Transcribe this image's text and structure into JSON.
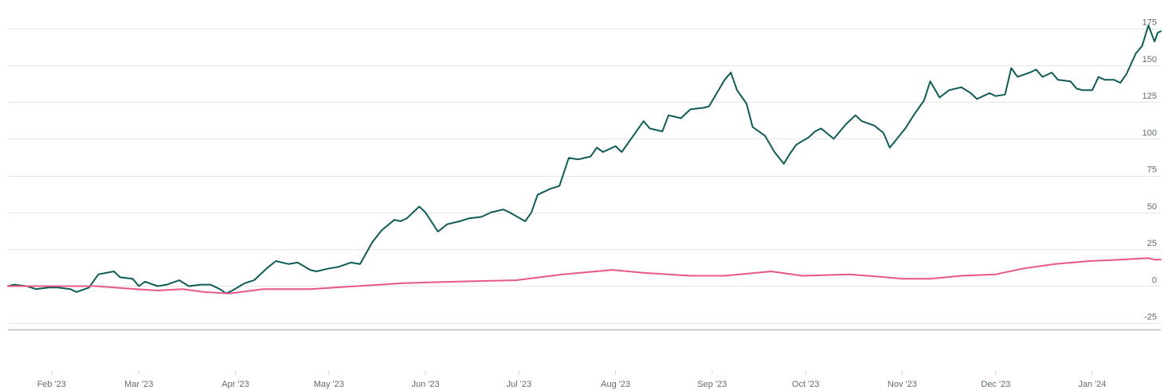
{
  "chart_data": {
    "type": "line",
    "title": "",
    "xlabel": "",
    "ylabel": "",
    "x_ticks": [
      "Feb '23",
      "Mar '23",
      "Apr '23",
      "May '23",
      "Jun '23",
      "Jul '23",
      "Aug '23",
      "Sep '23",
      "Oct '23",
      "Nov '23",
      "Dec '23",
      "Jan '24"
    ],
    "y_ticks": [
      "175",
      "150",
      "125",
      "100",
      "75",
      "50",
      "25",
      "0",
      "-25"
    ],
    "ylim": [
      -30,
      178
    ],
    "xlim": [
      "2023-01-18",
      "2024-01-23"
    ],
    "y_axis_position": "right",
    "grid": true,
    "legend": "none",
    "series": [
      {
        "color": "#0f5c57",
        "points": [
          [
            "2023-01-18",
            0
          ],
          [
            "2023-01-20",
            1
          ],
          [
            "2023-01-24",
            0
          ],
          [
            "2023-01-27",
            -2
          ],
          [
            "2023-01-31",
            -1
          ],
          [
            "2023-02-03",
            -1
          ],
          [
            "2023-02-07",
            -2
          ],
          [
            "2023-02-09",
            -4
          ],
          [
            "2023-02-13",
            -1
          ],
          [
            "2023-02-16",
            8
          ],
          [
            "2023-02-21",
            10
          ],
          [
            "2023-02-23",
            6
          ],
          [
            "2023-02-27",
            5
          ],
          [
            "2023-03-01",
            0
          ],
          [
            "2023-03-03",
            3
          ],
          [
            "2023-03-07",
            0
          ],
          [
            "2023-03-10",
            1
          ],
          [
            "2023-03-14",
            4
          ],
          [
            "2023-03-17",
            0
          ],
          [
            "2023-03-21",
            1
          ],
          [
            "2023-03-24",
            1
          ],
          [
            "2023-03-27",
            -2
          ],
          [
            "2023-03-29",
            -5
          ],
          [
            "2023-03-31",
            -3
          ],
          [
            "2023-04-04",
            2
          ],
          [
            "2023-04-07",
            4
          ],
          [
            "2023-04-11",
            12
          ],
          [
            "2023-04-14",
            17
          ],
          [
            "2023-04-18",
            15
          ],
          [
            "2023-04-21",
            16
          ],
          [
            "2023-04-25",
            11
          ],
          [
            "2023-04-27",
            10
          ],
          [
            "2023-05-01",
            12
          ],
          [
            "2023-05-04",
            13
          ],
          [
            "2023-05-08",
            16
          ],
          [
            "2023-05-11",
            15
          ],
          [
            "2023-05-15",
            30
          ],
          [
            "2023-05-18",
            38
          ],
          [
            "2023-05-22",
            45
          ],
          [
            "2023-05-24",
            44
          ],
          [
            "2023-05-26",
            46
          ],
          [
            "2023-05-30",
            54
          ],
          [
            "2023-06-01",
            50
          ],
          [
            "2023-06-05",
            37
          ],
          [
            "2023-06-08",
            42
          ],
          [
            "2023-06-12",
            44
          ],
          [
            "2023-06-15",
            46
          ],
          [
            "2023-06-19",
            47
          ],
          [
            "2023-06-22",
            50
          ],
          [
            "2023-06-26",
            52
          ],
          [
            "2023-06-28",
            50
          ],
          [
            "2023-07-03",
            44
          ],
          [
            "2023-07-05",
            50
          ],
          [
            "2023-07-07",
            62
          ],
          [
            "2023-07-11",
            66
          ],
          [
            "2023-07-14",
            68
          ],
          [
            "2023-07-17",
            87
          ],
          [
            "2023-07-20",
            86
          ],
          [
            "2023-07-24",
            88
          ],
          [
            "2023-07-26",
            94
          ],
          [
            "2023-07-28",
            91
          ],
          [
            "2023-08-01",
            95
          ],
          [
            "2023-08-03",
            91
          ],
          [
            "2023-08-07",
            103
          ],
          [
            "2023-08-10",
            112
          ],
          [
            "2023-08-12",
            107
          ],
          [
            "2023-08-16",
            105
          ],
          [
            "2023-08-18",
            116
          ],
          [
            "2023-08-22",
            114
          ],
          [
            "2023-08-25",
            120
          ],
          [
            "2023-08-29",
            121
          ],
          [
            "2023-08-31",
            122
          ],
          [
            "2023-09-05",
            140
          ],
          [
            "2023-09-07",
            145
          ],
          [
            "2023-09-09",
            133
          ],
          [
            "2023-09-12",
            124
          ],
          [
            "2023-09-14",
            108
          ],
          [
            "2023-09-18",
            102
          ],
          [
            "2023-09-21",
            91
          ],
          [
            "2023-09-24",
            83
          ],
          [
            "2023-09-26",
            90
          ],
          [
            "2023-09-28",
            96
          ],
          [
            "2023-10-02",
            101
          ],
          [
            "2023-10-04",
            105
          ],
          [
            "2023-10-06",
            107
          ],
          [
            "2023-10-10",
            100
          ],
          [
            "2023-10-14",
            110
          ],
          [
            "2023-10-17",
            116
          ],
          [
            "2023-10-19",
            112
          ],
          [
            "2023-10-23",
            109
          ],
          [
            "2023-10-26",
            104
          ],
          [
            "2023-10-28",
            94
          ],
          [
            "2023-11-02",
            107
          ],
          [
            "2023-11-05",
            117
          ],
          [
            "2023-11-08",
            126
          ],
          [
            "2023-11-10",
            139
          ],
          [
            "2023-11-13",
            128
          ],
          [
            "2023-11-16",
            133
          ],
          [
            "2023-11-20",
            135
          ],
          [
            "2023-11-23",
            131
          ],
          [
            "2023-11-25",
            127
          ],
          [
            "2023-11-29",
            131
          ],
          [
            "2023-12-01",
            129
          ],
          [
            "2023-12-04",
            130
          ],
          [
            "2023-12-06",
            148
          ],
          [
            "2023-12-08",
            142
          ],
          [
            "2023-12-12",
            145
          ],
          [
            "2023-12-14",
            147
          ],
          [
            "2023-12-16",
            142
          ],
          [
            "2023-12-19",
            145
          ],
          [
            "2023-12-21",
            140
          ],
          [
            "2023-12-25",
            139
          ],
          [
            "2023-12-27",
            134
          ],
          [
            "2023-12-29",
            133
          ],
          [
            "2024-01-01",
            133
          ],
          [
            "2024-01-03",
            142
          ],
          [
            "2024-01-05",
            140
          ],
          [
            "2024-01-08",
            140
          ],
          [
            "2024-01-10",
            138
          ],
          [
            "2024-01-12",
            144
          ],
          [
            "2024-01-15",
            158
          ],
          [
            "2024-01-17",
            163
          ],
          [
            "2024-01-19",
            177
          ],
          [
            "2024-01-21",
            166
          ],
          [
            "2024-01-22",
            172
          ],
          [
            "2024-01-23",
            173
          ]
        ]
      },
      {
        "color": "#e8578a",
        "points": [
          [
            "2023-01-18",
            0
          ],
          [
            "2023-02-01",
            0
          ],
          [
            "2023-02-15",
            0
          ],
          [
            "2023-02-28",
            -2
          ],
          [
            "2023-03-07",
            -3
          ],
          [
            "2023-03-15",
            -2
          ],
          [
            "2023-03-22",
            -4
          ],
          [
            "2023-03-30",
            -5
          ],
          [
            "2023-04-10",
            -2
          ],
          [
            "2023-04-25",
            -2
          ],
          [
            "2023-05-10",
            0
          ],
          [
            "2023-05-25",
            2
          ],
          [
            "2023-06-10",
            3
          ],
          [
            "2023-06-30",
            4
          ],
          [
            "2023-07-15",
            8
          ],
          [
            "2023-07-31",
            11
          ],
          [
            "2023-08-10",
            9
          ],
          [
            "2023-08-25",
            7
          ],
          [
            "2023-09-05",
            7
          ],
          [
            "2023-09-20",
            10
          ],
          [
            "2023-09-30",
            7
          ],
          [
            "2023-10-15",
            8
          ],
          [
            "2023-10-27",
            6
          ],
          [
            "2023-11-01",
            5
          ],
          [
            "2023-11-10",
            5
          ],
          [
            "2023-11-20",
            7
          ],
          [
            "2023-12-01",
            8
          ],
          [
            "2023-12-10",
            12
          ],
          [
            "2023-12-20",
            15
          ],
          [
            "2023-12-31",
            17
          ],
          [
            "2024-01-10",
            18
          ],
          [
            "2024-01-19",
            19
          ],
          [
            "2024-01-21",
            18
          ],
          [
            "2024-01-23",
            18
          ]
        ]
      }
    ]
  }
}
